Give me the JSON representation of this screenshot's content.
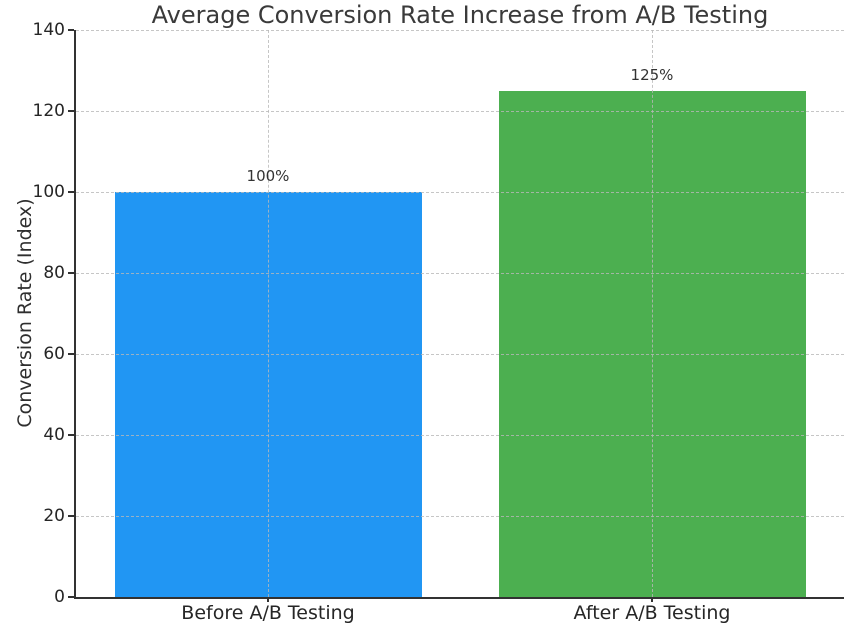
{
  "chart_data": {
    "type": "bar",
    "title": "Average Conversion Rate Increase from A/B Testing",
    "xlabel": "",
    "ylabel": "Conversion Rate (Index)",
    "categories": [
      "Before A/B Testing",
      "After A/B Testing"
    ],
    "values": [
      100,
      125
    ],
    "bar_labels": [
      "100%",
      "125%"
    ],
    "bar_colors": [
      "#2196f3",
      "#4caf50"
    ],
    "ylim": [
      0,
      140
    ],
    "yticks": [
      0,
      20,
      40,
      60,
      80,
      100,
      120,
      140
    ],
    "grid": {
      "horizontal": true,
      "vertical": true,
      "style": "dashed",
      "above_bars": true
    },
    "legend": "none"
  },
  "style": {
    "background": "#ffffff",
    "spine_color": "#323232",
    "grid_color": "#b8b8b8",
    "title_color": "#3a3a3a",
    "tick_color": "#262626"
  }
}
